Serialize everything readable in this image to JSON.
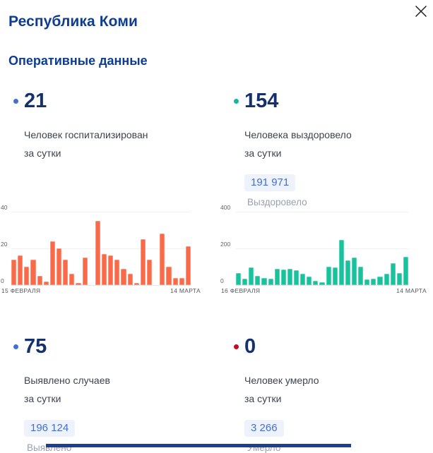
{
  "window": {
    "close_label": "close"
  },
  "header": {
    "region_title": "Республика Коми",
    "section_title": "Оперативные данные"
  },
  "stats": [
    {
      "id": "hospitalized",
      "value": "21",
      "label_line1": "Человек госпитализирован",
      "label_line2": "за сутки",
      "dot_color": "#4070d6"
    },
    {
      "id": "recovered",
      "value": "154",
      "label_line1": "Человека выздоровело",
      "label_line2": "за сутки",
      "total": "191 971",
      "total_label": "Выздоровело",
      "dot_color": "#10b998"
    },
    {
      "id": "confirmed",
      "value": "75",
      "label_line1": "Выявлено случаев",
      "label_line2": "за сутки",
      "total": "196 124",
      "total_label": "Выявлено",
      "dot_color": "#4070d6"
    },
    {
      "id": "deaths",
      "value": "0",
      "label_line1": "Человек умерло",
      "label_line2": "за сутки",
      "total": "3 266",
      "total_label": "Умерло",
      "dot_color": "#c40b20"
    }
  ],
  "chart_data": [
    {
      "type": "bar",
      "name": "hospitalized-daily",
      "color": "#fa6a49",
      "ylim": [
        0,
        40
      ],
      "yticks": [
        "0",
        "20",
        "40"
      ],
      "x_start_label": "15 ФЕВРАЛЯ",
      "x_end_label": "14 МАРТА",
      "grid": true,
      "values": [
        14,
        16,
        10,
        14,
        5,
        2,
        24,
        20,
        14,
        6,
        1,
        15,
        0,
        35,
        17,
        16,
        14,
        9,
        6,
        1,
        25,
        14,
        0,
        28,
        10,
        4,
        4,
        21
      ]
    },
    {
      "type": "bar",
      "name": "recovered-daily",
      "color": "#17c29c",
      "ylim": [
        0,
        400
      ],
      "yticks": [
        "0",
        "200",
        "400"
      ],
      "x_start_label": "16 ФЕВРАЛЯ",
      "x_end_label": "14 МАРТА",
      "grid": true,
      "values": [
        65,
        35,
        95,
        50,
        40,
        35,
        90,
        85,
        90,
        80,
        60,
        45,
        25,
        15,
        100,
        95,
        245,
        135,
        150,
        100,
        30,
        35,
        45,
        60,
        120,
        65,
        154
      ]
    }
  ],
  "colors": {
    "title_navy": "#0e3d8f",
    "value_navy": "#14316d",
    "label_gray": "#3d434e",
    "caption_gray": "#9aa1ad",
    "badge_bg": "#edf2fc",
    "badge_text": "#4070d6",
    "bar_orange": "#fa6a49",
    "bar_teal": "#17c29c",
    "dot_blue": "#4070d6",
    "dot_teal": "#10b998",
    "dot_red": "#c40b20"
  }
}
